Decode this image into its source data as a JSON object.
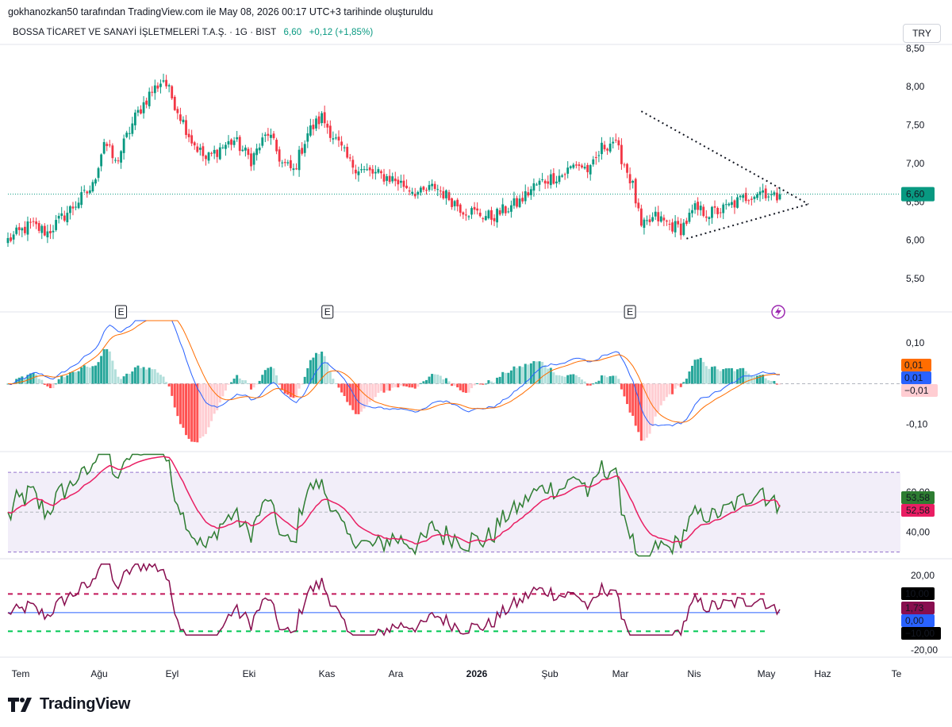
{
  "header": {
    "caption": "gokhanozkan50 tarafından TradingView.com ile May 08, 2026 00:17 UTC+3 tarihinde oluşturuldu"
  },
  "symbol": {
    "name": "BOSSA TİCARET VE SANAYİ İŞLETMELERİ T.A.Ş. · 1G · BIST",
    "price": "6,60",
    "change": "+0,12 (+1,85%)",
    "currency": "TRY"
  },
  "brand": {
    "name": "TradingView"
  },
  "colors": {
    "up": "#089981",
    "down": "#f23645",
    "macd": "#2962ff",
    "signal": "#ff6d00",
    "hist_up_strong": "#26a69a",
    "hist_up_weak": "#b2dfdb",
    "hist_dn_strong": "#ff5252",
    "hist_dn_weak": "#ffcdd2",
    "rsi": "#2e7d32",
    "rsi_ma": "#e91e63",
    "rsi_band": "#7e57c2",
    "osc": "#880e4f",
    "osc_line": "#2962ff"
  },
  "chart_data": [
    {
      "type": "candlestick",
      "name": "price",
      "ylim": [
        5.2,
        8.55
      ],
      "y_ticks": [
        "5,50",
        "6,00",
        "6,50",
        "7,00",
        "7,50",
        "8,00",
        "8,50"
      ],
      "y_tick_values": [
        5.5,
        6.0,
        6.5,
        7.0,
        7.5,
        8.0,
        8.5
      ],
      "last_price": 6.6,
      "last_label": "6,60",
      "x_ticks": [
        "Tem",
        "Ağu",
        "Eyl",
        "Eki",
        "Kas",
        "Ara",
        "2026",
        "Şub",
        "Mar",
        "Nis",
        "May",
        "Haz",
        "Te"
      ],
      "close_path": [
        [
          0,
          6.0
        ],
        [
          8,
          6.2
        ],
        [
          14,
          6.1
        ],
        [
          22,
          6.4
        ],
        [
          30,
          6.7
        ],
        [
          34,
          7.3
        ],
        [
          38,
          7.0
        ],
        [
          45,
          7.6
        ],
        [
          50,
          7.9
        ],
        [
          55,
          8.1
        ],
        [
          60,
          7.7
        ],
        [
          65,
          7.3
        ],
        [
          70,
          7.05
        ],
        [
          75,
          7.2
        ],
        [
          80,
          7.3
        ],
        [
          86,
          7.05
        ],
        [
          92,
          7.4
        ],
        [
          97,
          7.0
        ],
        [
          101,
          6.9
        ],
        [
          106,
          7.4
        ],
        [
          111,
          7.6
        ],
        [
          116,
          7.3
        ],
        [
          121,
          7.0
        ],
        [
          126,
          6.9
        ],
        [
          131,
          6.85
        ],
        [
          136,
          6.8
        ],
        [
          141,
          6.7
        ],
        [
          146,
          6.6
        ],
        [
          151,
          6.7
        ],
        [
          156,
          6.55
        ],
        [
          161,
          6.4
        ],
        [
          166,
          6.35
        ],
        [
          171,
          6.3
        ],
        [
          176,
          6.4
        ],
        [
          181,
          6.5
        ],
        [
          186,
          6.7
        ],
        [
          191,
          6.8
        ],
        [
          196,
          6.85
        ],
        [
          201,
          7.0
        ],
        [
          206,
          6.9
        ],
        [
          210,
          7.2
        ],
        [
          214,
          7.3
        ],
        [
          218,
          7.0
        ],
        [
          221,
          6.7
        ],
        [
          224,
          6.15
        ],
        [
          229,
          6.3
        ],
        [
          234,
          6.2
        ],
        [
          238,
          6.15
        ],
        [
          243,
          6.4
        ],
        [
          248,
          6.35
        ],
        [
          253,
          6.4
        ],
        [
          258,
          6.5
        ],
        [
          263,
          6.6
        ],
        [
          267,
          6.65
        ],
        [
          271,
          6.55
        ],
        [
          273,
          6.6
        ]
      ],
      "events_label": "E",
      "events_index": [
        40,
        113,
        220
      ]
    },
    {
      "type": "macd",
      "ylim": [
        -0.165,
        0.155
      ],
      "y_ticks": [
        "-0,10",
        "0,10"
      ],
      "y_tick_values": [
        -0.1,
        0.1
      ],
      "labels": [
        "0,01",
        "0,01",
        "−0,01"
      ],
      "label_values": [
        0.01,
        0.01,
        -0.01
      ]
    },
    {
      "type": "rsi",
      "ylim": [
        27,
        80
      ],
      "y_ticks": [
        "40,00",
        "60,00"
      ],
      "y_tick_values": [
        40,
        60
      ],
      "upper": 70,
      "mid": 50,
      "lower": 30,
      "labels": [
        "53,58",
        "52,58"
      ],
      "label_values": [
        53.58,
        52.58
      ]
    },
    {
      "type": "oscillator",
      "ylim": [
        -23,
        28
      ],
      "y_ticks": [
        "-20,00",
        "20,00"
      ],
      "y_tick_values": [
        -20,
        20
      ],
      "upper": 10,
      "zero": 0,
      "lower": -10,
      "labels": [
        "10,00",
        "1,73",
        "0,00",
        "−10,00"
      ],
      "label_values": [
        10,
        1.73,
        0,
        -10
      ]
    }
  ]
}
